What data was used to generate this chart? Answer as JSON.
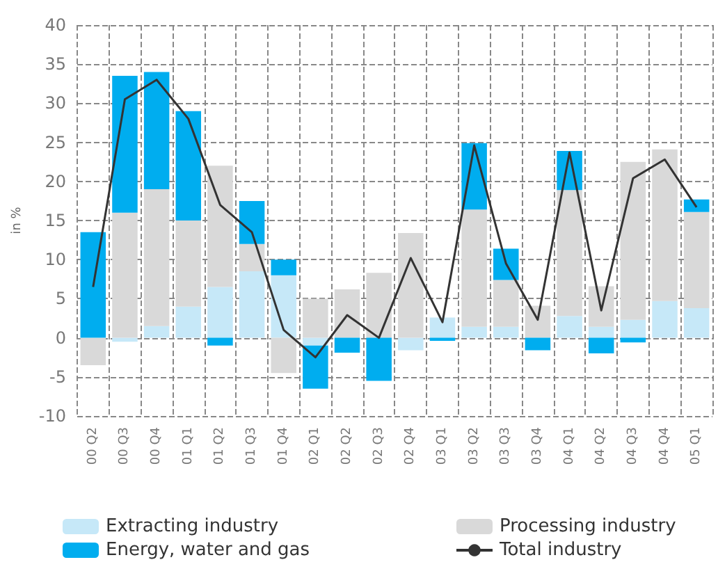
{
  "chart_data": {
    "type": "bar",
    "stacked": true,
    "ylabel": "in %",
    "categories": [
      "00 Q2",
      "00 Q3",
      "00 Q4",
      "01 Q1",
      "01 Q2",
      "01 Q3",
      "01 Q4",
      "02 Q1",
      "02 Q2",
      "02 Q3",
      "02 Q4",
      "03 Q1",
      "03 Q2",
      "03 Q3",
      "03 Q4",
      "04 Q1",
      "04 Q2",
      "04 Q3",
      "04 Q4",
      "05 Q1"
    ],
    "series": [
      {
        "name": "Extracting industry",
        "color": "#c6e8f8",
        "values": [
          null,
          -0.5,
          1.5,
          4,
          6.5,
          8.5,
          8,
          -1,
          null,
          null,
          -1.6,
          2.6,
          1.4,
          1.4,
          null,
          2.8,
          1.4,
          2.3,
          4.7,
          3.8
        ]
      },
      {
        "name": "Processing industry",
        "color": "#d9d9d9",
        "values": [
          -3.5,
          16,
          17.5,
          11,
          15.5,
          3.5,
          -4.5,
          5,
          6.2,
          8.3,
          13.4,
          null,
          15,
          6,
          4.1,
          16.1,
          5.2,
          20.2,
          19.4,
          12.3
        ]
      },
      {
        "name": "Energy, water and gas",
        "color": "#00adef",
        "values": [
          13.5,
          17.5,
          15,
          14,
          -1,
          5.5,
          2,
          -5.5,
          -1.9,
          -5.5,
          null,
          -0.4,
          8.5,
          4,
          -1.6,
          5,
          -2,
          -0.6,
          null,
          1.6
        ]
      },
      {
        "name": "Total industry",
        "type": "line",
        "color": "#333333",
        "values": [
          6.5,
          30.5,
          33,
          28,
          17,
          13.5,
          1,
          -2.5,
          2.9,
          0,
          10.2,
          2,
          24.6,
          9.5,
          2.3,
          23.7,
          3.5,
          20.4,
          22.8,
          16.7
        ]
      }
    ],
    "ylim": [
      -10,
      40
    ],
    "yticks": [
      -10,
      -5,
      0,
      5,
      10,
      15,
      20,
      25,
      30,
      35,
      40
    ],
    "grid": true,
    "legend": "bottom",
    "marker": "none"
  }
}
